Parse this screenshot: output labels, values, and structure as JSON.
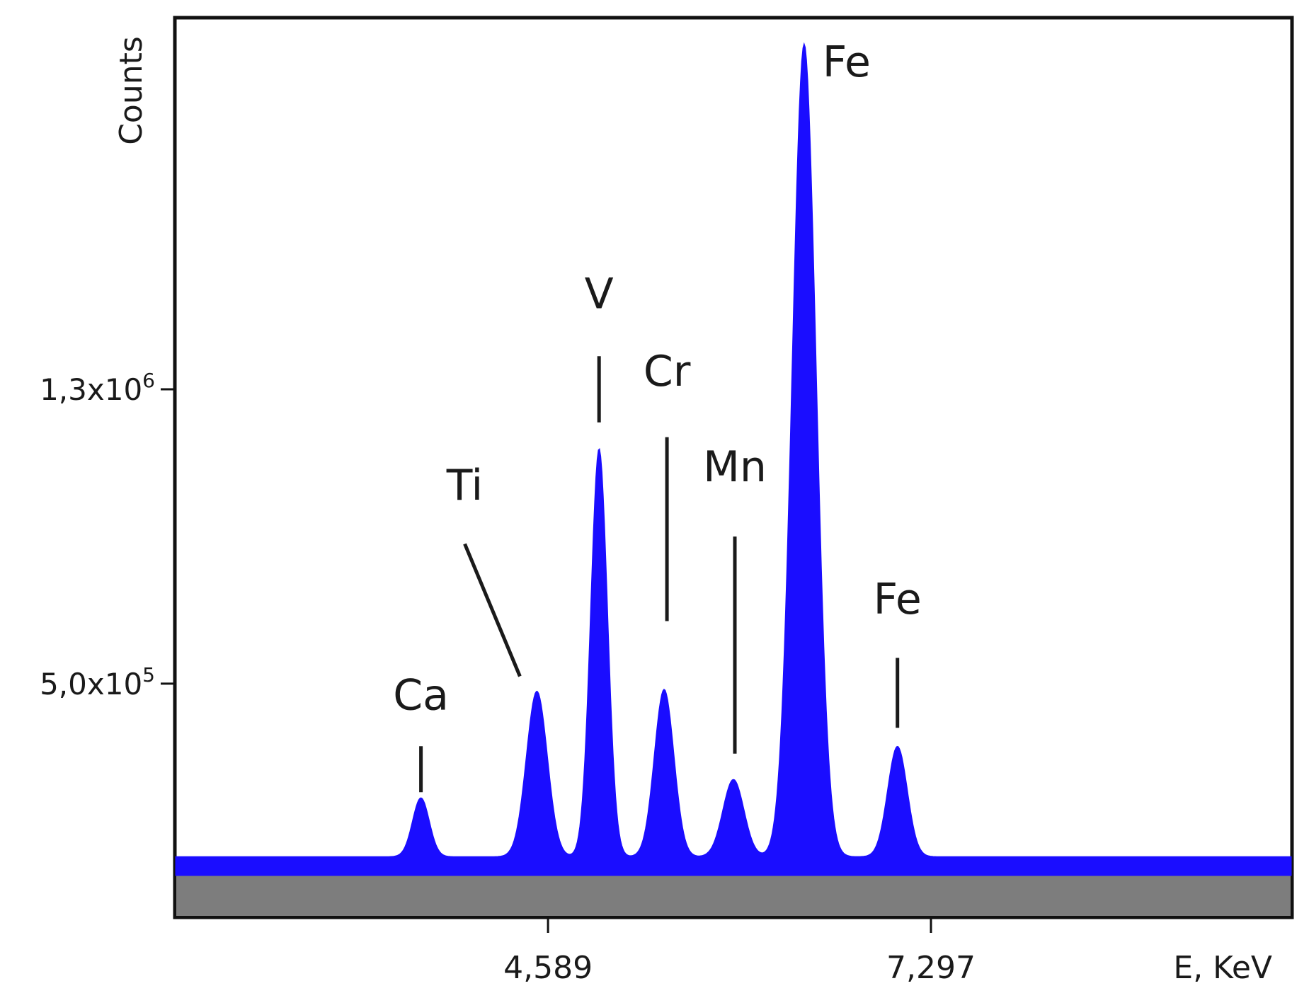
{
  "chart_data": {
    "type": "area",
    "title": "",
    "xlabel": "E, KeV",
    "ylabel": "Counts",
    "x_ticks": [
      {
        "value": 4.589,
        "label": "4,589"
      },
      {
        "value": 7.297,
        "label": "7,297"
      }
    ],
    "y_ticks": [
      {
        "value": 500000,
        "label_base": "5,0x10",
        "label_exp": "5"
      },
      {
        "value": 1300000,
        "label_base": "1,3x10",
        "label_exp": "6"
      }
    ],
    "xlim": [
      1.95,
      9.85
    ],
    "ylim": [
      -135000,
      2310000
    ],
    "grid": false,
    "series": [
      {
        "name": "",
        "color": "#1a0dff",
        "baseline": 30000,
        "peaks": [
          {
            "label": "Ca",
            "x": 3.69,
            "y": 160000,
            "sigma": 0.06
          },
          {
            "label": "Ti",
            "x": 4.51,
            "y": 450000,
            "sigma": 0.075
          },
          {
            "label": "V",
            "x": 4.95,
            "y": 1110000,
            "sigma": 0.06
          },
          {
            "label": "Cr",
            "x": 5.41,
            "y": 455000,
            "sigma": 0.07
          },
          {
            "label": "Mn",
            "x": 5.9,
            "y": 210000,
            "sigma": 0.075
          },
          {
            "label": "Fe",
            "x": 6.4,
            "y": 2210000,
            "sigma": 0.085
          },
          {
            "label": "Fe",
            "x": 7.06,
            "y": 300000,
            "sigma": 0.07
          }
        ]
      }
    ],
    "annotations": [
      {
        "text": "Ca",
        "x": 3.69,
        "y": 430000,
        "line": [
          [
            3.69,
            330000
          ],
          [
            3.69,
            205000
          ]
        ]
      },
      {
        "text": "Ti",
        "x": 4.0,
        "y": 1000000,
        "line": [
          [
            4.0,
            880000
          ],
          [
            4.39,
            520000
          ]
        ]
      },
      {
        "text": "V",
        "x": 4.95,
        "y": 1520000,
        "line": [
          [
            4.95,
            1390000
          ],
          [
            4.95,
            1210000
          ]
        ]
      },
      {
        "text": "Cr",
        "x": 5.43,
        "y": 1310000,
        "line": [
          [
            5.43,
            1170000
          ],
          [
            5.43,
            670000
          ]
        ]
      },
      {
        "text": "Mn",
        "x": 5.91,
        "y": 1050000,
        "line": [
          [
            5.91,
            900000
          ],
          [
            5.91,
            310000
          ]
        ]
      },
      {
        "text": "Fe",
        "x": 6.7,
        "y": 2150000,
        "line": null
      },
      {
        "text": "Fe",
        "x": 7.06,
        "y": 690000,
        "line": [
          [
            7.06,
            570000
          ],
          [
            7.06,
            380000
          ]
        ]
      }
    ]
  }
}
